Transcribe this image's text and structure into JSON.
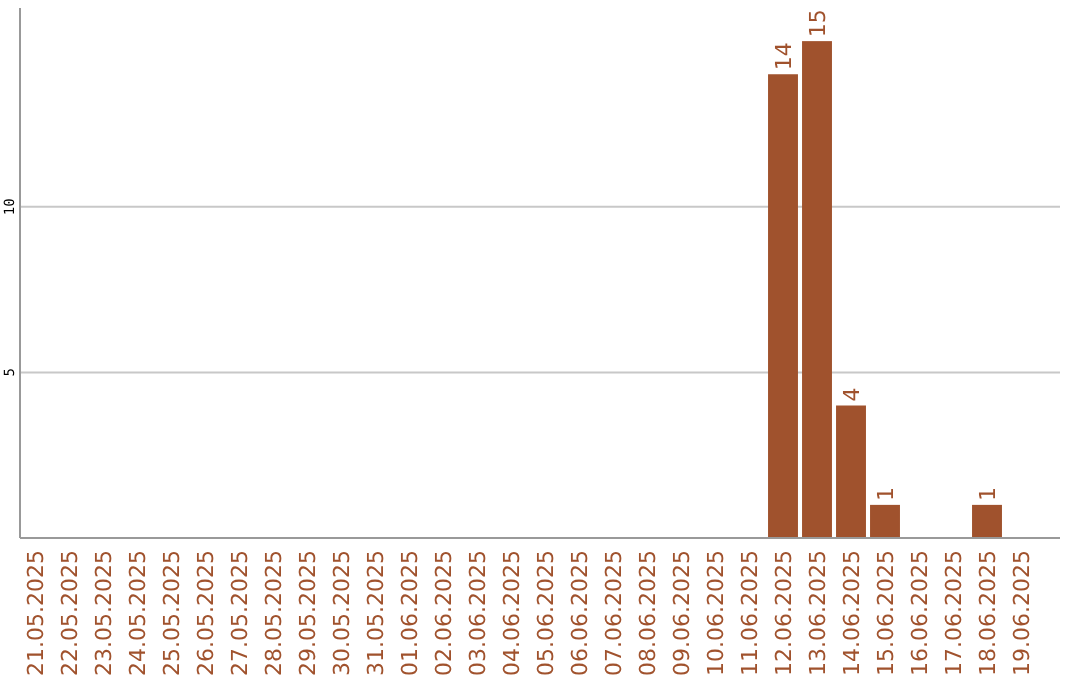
{
  "chart_data": {
    "type": "bar",
    "categories": [
      "21.05.2025",
      "22.05.2025",
      "23.05.2025",
      "24.05.2025",
      "25.05.2025",
      "26.05.2025",
      "27.05.2025",
      "28.05.2025",
      "29.05.2025",
      "30.05.2025",
      "31.05.2025",
      "01.06.2025",
      "02.06.2025",
      "03.06.2025",
      "04.06.2025",
      "05.06.2025",
      "06.06.2025",
      "07.06.2025",
      "08.06.2025",
      "09.06.2025",
      "10.06.2025",
      "11.06.2025",
      "12.06.2025",
      "13.06.2025",
      "14.06.2025",
      "15.06.2025",
      "16.06.2025",
      "17.06.2025",
      "18.06.2025",
      "19.06.2025"
    ],
    "values": [
      0,
      0,
      0,
      0,
      0,
      0,
      0,
      0,
      0,
      0,
      0,
      0,
      0,
      0,
      0,
      0,
      0,
      0,
      0,
      0,
      0,
      0,
      14,
      15,
      4,
      1,
      0,
      0,
      1,
      0
    ],
    "value_labels": [
      null,
      null,
      null,
      null,
      null,
      null,
      null,
      null,
      null,
      null,
      null,
      null,
      null,
      null,
      null,
      null,
      null,
      null,
      null,
      null,
      null,
      null,
      "14",
      "15",
      "4",
      "1",
      null,
      null,
      "1",
      null
    ],
    "color": "#a0522d",
    "ylim": [
      0,
      16
    ],
    "yticks": [
      5,
      10
    ],
    "grid": "y"
  }
}
